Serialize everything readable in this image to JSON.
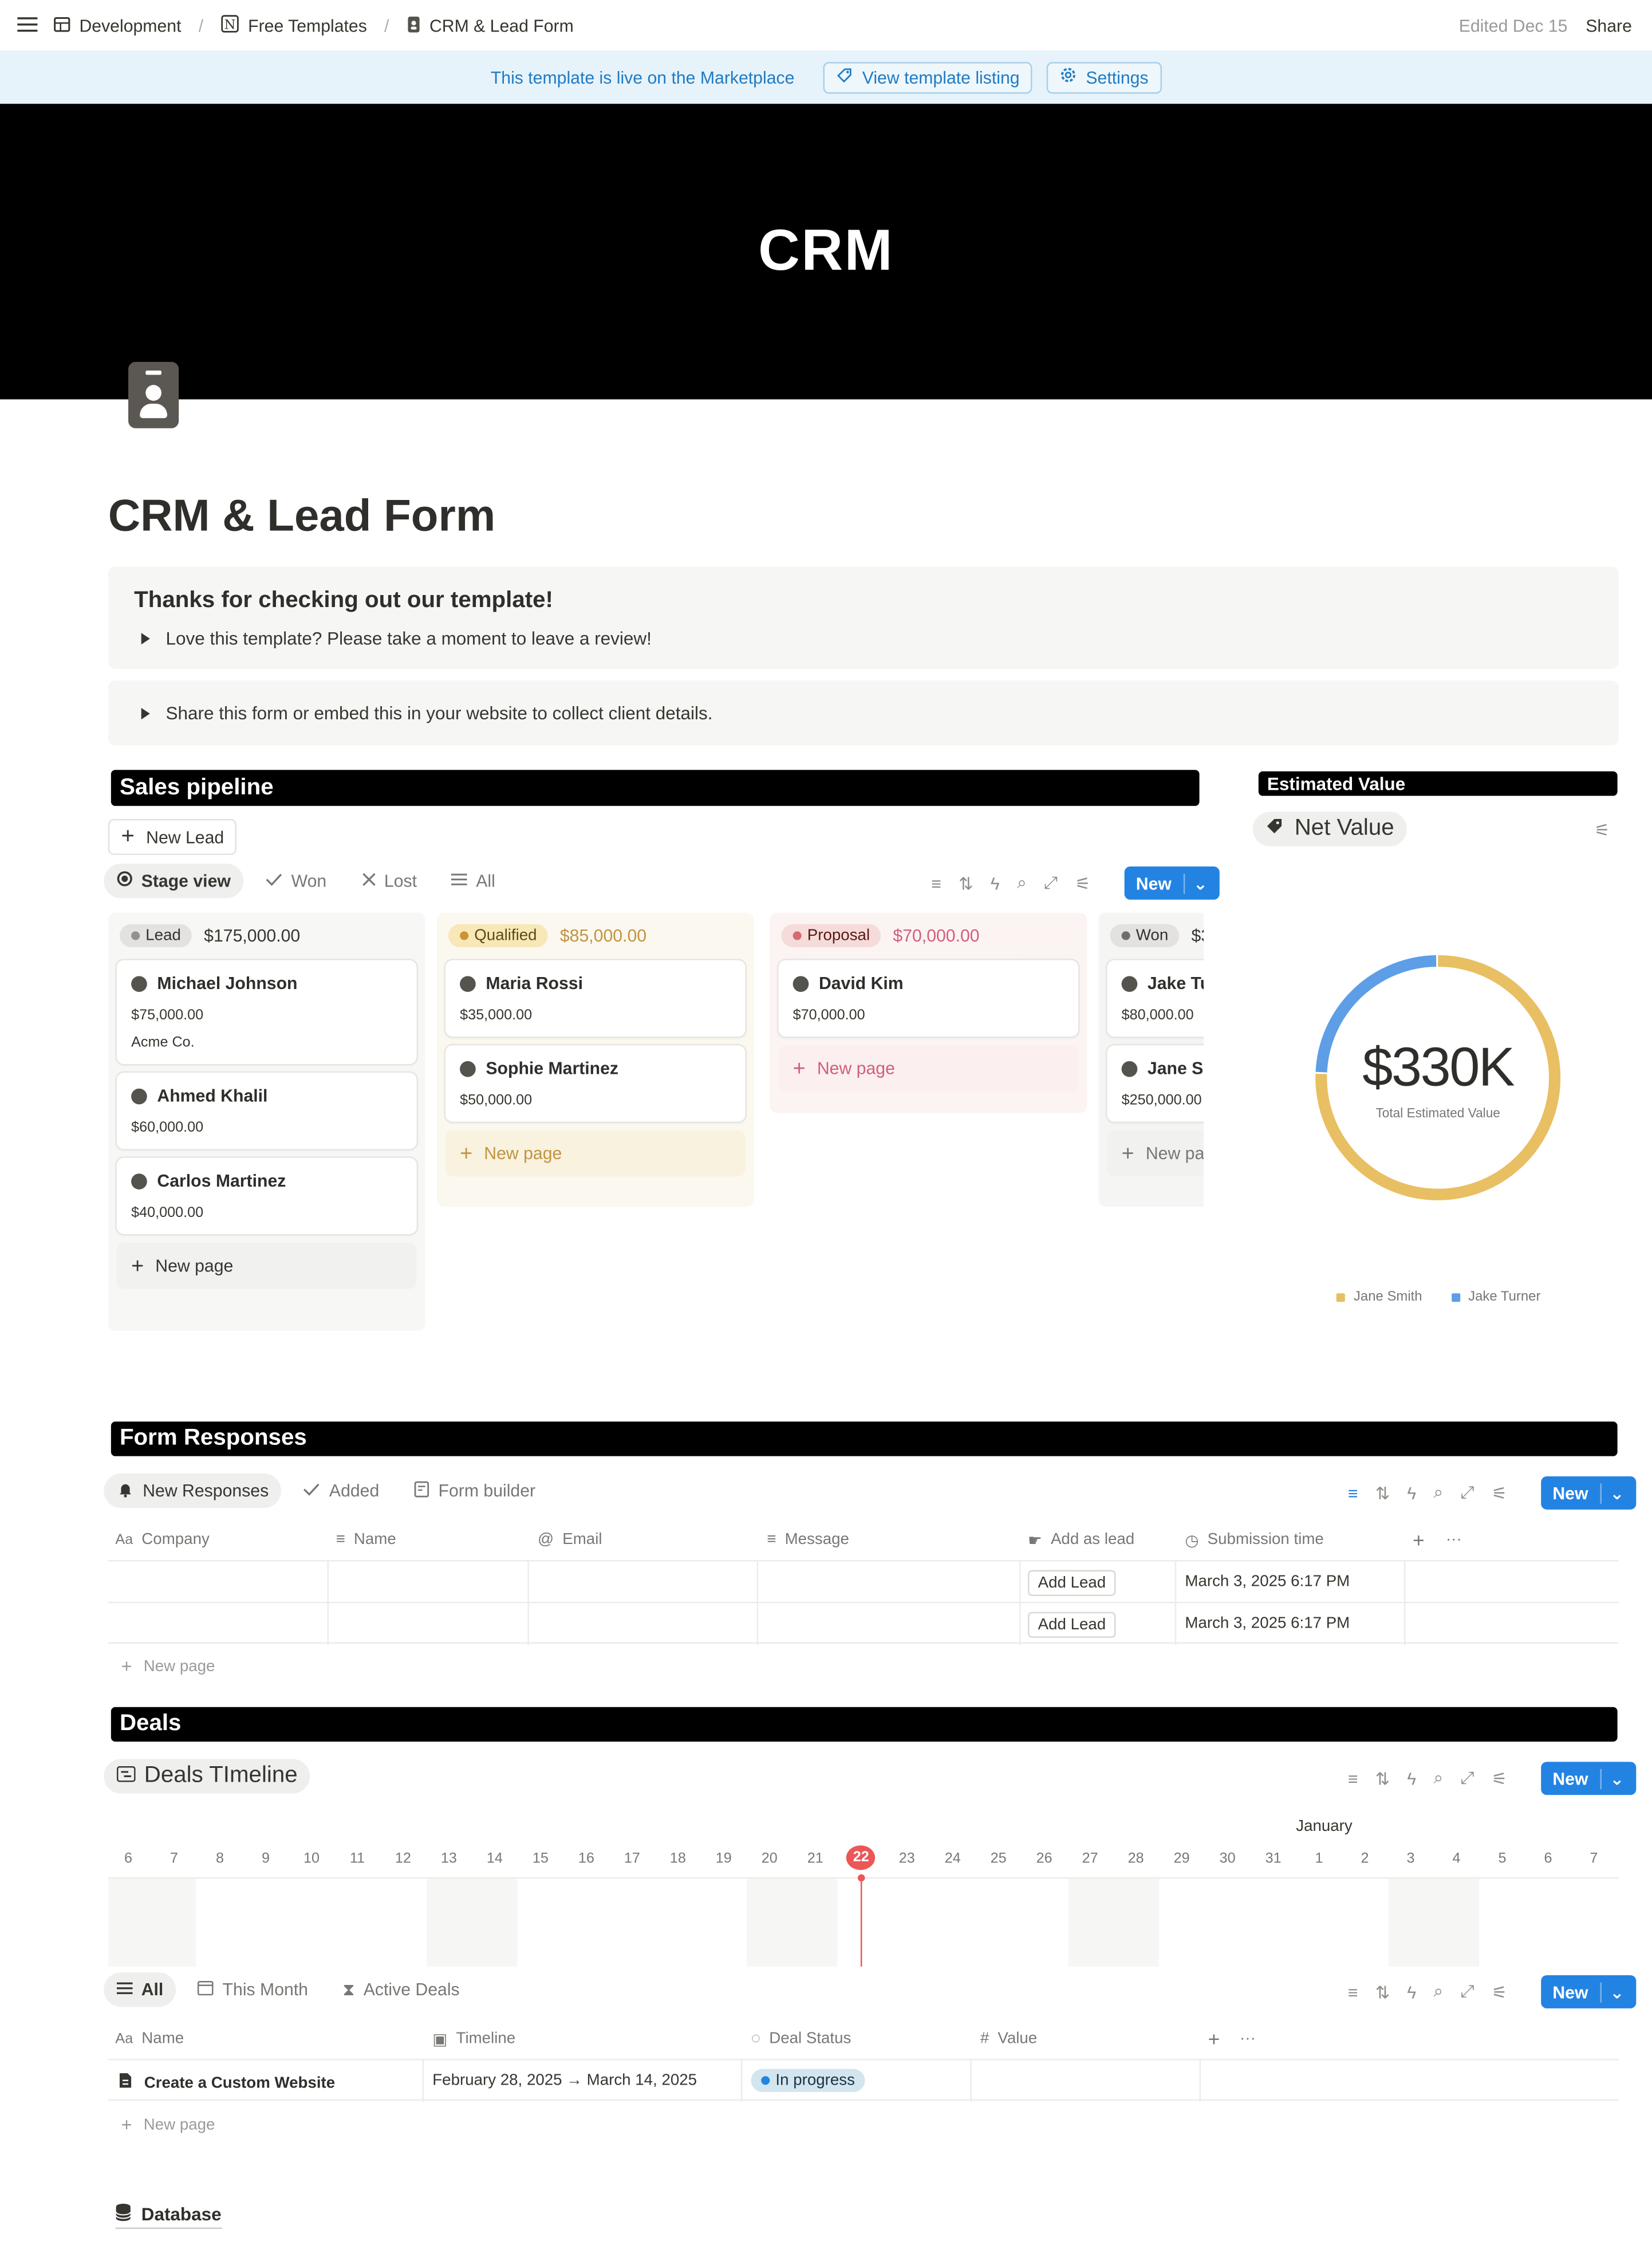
{
  "topbar": {
    "breadcrumb": [
      "Development",
      "Free Templates",
      "CRM & Lead Form"
    ],
    "edited": "Edited Dec 15",
    "share": "Share"
  },
  "banner": {
    "text": "This template is live on the Marketplace",
    "listing_button": "View template listing",
    "settings_button": "Settings"
  },
  "cover": {
    "text": "CRM"
  },
  "page": {
    "title": "CRM & Lead Form"
  },
  "callout1": {
    "heading": "Thanks for checking out our template!",
    "toggle": "Love this template? Please take a moment to leave a review!"
  },
  "callout2": {
    "toggle": "Share this form or embed this in your website to collect client details."
  },
  "pipeline": {
    "header": "Sales pipeline",
    "new_lead": "New Lead",
    "tabs": [
      "Stage view",
      "Won",
      "Lost",
      "All"
    ],
    "new": "New",
    "columns": [
      {
        "stage": "Lead",
        "total": "$175,000.00",
        "cards": [
          {
            "name": "Michael Johnson",
            "value": "$75,000.00",
            "company": "Acme Co."
          },
          {
            "name": "Ahmed Khalil",
            "value": "$60,000.00"
          },
          {
            "name": "Carlos Martinez",
            "value": "$40,000.00"
          }
        ],
        "new_page": "New page"
      },
      {
        "stage": "Qualified",
        "total": "$85,000.00",
        "cards": [
          {
            "name": "Maria Rossi",
            "value": "$35,000.00"
          },
          {
            "name": "Sophie Martinez",
            "value": "$50,000.00"
          }
        ],
        "new_page": "New page"
      },
      {
        "stage": "Proposal",
        "total": "$70,000.00",
        "cards": [
          {
            "name": "David Kim",
            "value": "$70,000.00"
          }
        ],
        "new_page": "New page"
      },
      {
        "stage": "Won",
        "total": "$3",
        "cards": [
          {
            "name": "Jake Tu",
            "value": "$80,000.00"
          },
          {
            "name": "Jane S",
            "value": "$250,000.00"
          }
        ],
        "new_page": "New pa"
      }
    ]
  },
  "estimate": {
    "header": "Estimated Value",
    "tab": "Net Value",
    "big": "$330K",
    "caption": "Total Estimated Value",
    "legend": [
      "Jane Smith",
      "Jake Turner"
    ]
  },
  "chart_data": {
    "type": "pie",
    "categories": [
      "Jane Smith",
      "Jake Turner"
    ],
    "values": [
      250000,
      80000
    ],
    "colors": [
      "#e8bf62",
      "#5d9ee6"
    ],
    "center_label": "$330K"
  },
  "forms": {
    "header": "Form Responses",
    "tabs": [
      "New Responses",
      "Added",
      "Form builder"
    ],
    "new": "New",
    "columns": [
      "Company",
      "Name",
      "Email",
      "Message",
      "Add as lead",
      "Submission time"
    ],
    "rows": [
      {
        "button": "Add Lead",
        "time": "March 3, 2025 6:17 PM"
      },
      {
        "button": "Add Lead",
        "time": "March 3, 2025 6:17 PM"
      }
    ],
    "new_page": "New page"
  },
  "deals": {
    "header": "Deals",
    "tab": "Deals TImeline",
    "new": "New",
    "month": "January",
    "days": [
      "6",
      "7",
      "8",
      "9",
      "10",
      "11",
      "12",
      "13",
      "14",
      "15",
      "16",
      "17",
      "18",
      "19",
      "20",
      "21",
      "22",
      "23",
      "24",
      "25",
      "26",
      "27",
      "28",
      "29",
      "30",
      "31",
      "1",
      "2",
      "3",
      "4",
      "5",
      "6",
      "7"
    ],
    "today": "22",
    "tabs2": [
      "All",
      "This Month",
      "Active Deals"
    ],
    "new2": "New",
    "columns": [
      "Name",
      "Timeline",
      "Deal Status",
      "Value"
    ],
    "rows": [
      {
        "name": "Create a Custom Website",
        "timeline": "February 28, 2025 → March 14, 2025",
        "status": "In progress"
      }
    ],
    "new_page": "New page"
  },
  "database": {
    "label": "Database"
  }
}
